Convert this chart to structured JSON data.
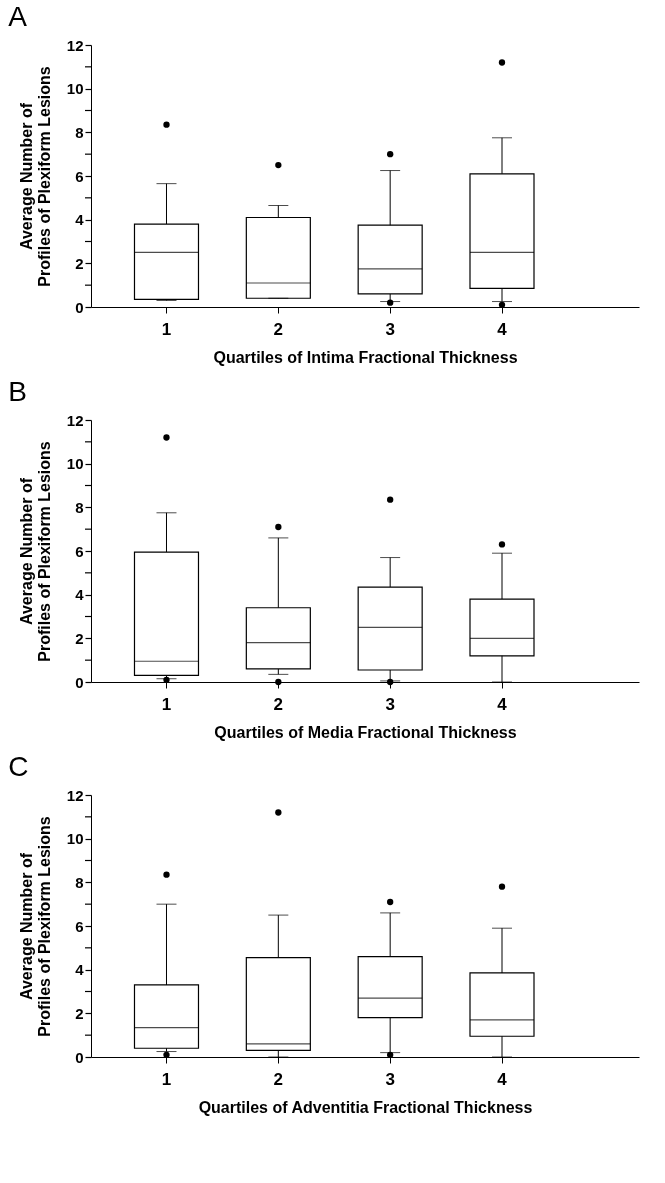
{
  "chart_data": [
    {
      "type": "box",
      "title": "A",
      "xlabel": "Quartiles of Intima Fractional Thickness",
      "ylabel": "Average Number of\nProfiles of Plexiform Lesions",
      "categories": [
        "1",
        "2",
        "3",
        "4"
      ],
      "ylim": [
        0,
        12
      ],
      "yticks": [
        0,
        {
          "value": 1,
          "label": null
        },
        2,
        {
          "value": 3,
          "label": null
        },
        4,
        {
          "value": 5,
          "label": null
        },
        6,
        {
          "value": 7,
          "label": null
        },
        8,
        {
          "value": 9,
          "label": null
        },
        10,
        {
          "value": 11,
          "label": null
        },
        12
      ],
      "grid": false,
      "legend": false,
      "boxes": [
        {
          "low": 0.3,
          "q1": 0.35,
          "median": 2.5,
          "q3": 3.8,
          "high": 5.65,
          "outliers": [
            8.35
          ]
        },
        {
          "low": 0.4,
          "q1": 0.4,
          "median": 1.1,
          "q3": 4.1,
          "high": 4.65,
          "outliers": [
            6.5
          ]
        },
        {
          "low": 0.25,
          "q1": 0.6,
          "median": 1.75,
          "q3": 3.75,
          "high": 6.25,
          "outliers": [
            7.0,
            0.2
          ]
        },
        {
          "low": 0.25,
          "q1": 0.85,
          "median": 2.5,
          "q3": 6.1,
          "high": 7.75,
          "outliers": [
            11.2,
            0.1
          ]
        }
      ]
    },
    {
      "type": "box",
      "title": "B",
      "xlabel": "Quartiles of Media Fractional Thickness",
      "ylabel": "Average Number of\nProfiles of Plexiform Lesions",
      "categories": [
        "1",
        "2",
        "3",
        "4"
      ],
      "ylim": [
        0,
        12
      ],
      "yticks": [
        0,
        {
          "value": 1,
          "label": null
        },
        2,
        {
          "value": 3,
          "label": null
        },
        4,
        {
          "value": 5,
          "label": null
        },
        6,
        {
          "value": 7,
          "label": null
        },
        8,
        {
          "value": 9,
          "label": null
        },
        10,
        {
          "value": 11,
          "label": null
        },
        12
      ],
      "grid": false,
      "legend": false,
      "boxes": [
        {
          "low": 0.15,
          "q1": 0.3,
          "median": 0.95,
          "q3": 5.95,
          "high": 7.75,
          "outliers": [
            11.2,
            0.1
          ]
        },
        {
          "low": 0.35,
          "q1": 0.6,
          "median": 1.8,
          "q3": 3.4,
          "high": 6.6,
          "outliers": [
            7.1,
            0.0
          ]
        },
        {
          "low": 0.05,
          "q1": 0.55,
          "median": 2.5,
          "q3": 4.35,
          "high": 5.7,
          "outliers": [
            8.35,
            0.0
          ]
        },
        {
          "low": 0.0,
          "q1": 1.2,
          "median": 2.0,
          "q3": 3.8,
          "high": 5.9,
          "outliers": [
            6.3
          ]
        }
      ]
    },
    {
      "type": "box",
      "title": "C",
      "xlabel": "Quartiles of Adventitia Fractional Thickness",
      "ylabel": "Average Number of\nProfiles of Plexiform Lesions",
      "categories": [
        "1",
        "2",
        "3",
        "4"
      ],
      "ylim": [
        0,
        12
      ],
      "yticks": [
        0,
        {
          "value": 1,
          "label": null
        },
        2,
        {
          "value": 3,
          "label": null
        },
        4,
        {
          "value": 5,
          "label": null
        },
        6,
        {
          "value": 7,
          "label": null
        },
        8,
        {
          "value": 9,
          "label": null
        },
        10,
        {
          "value": 11,
          "label": null
        },
        12
      ],
      "grid": false,
      "legend": false,
      "boxes": [
        {
          "low": 0.25,
          "q1": 0.4,
          "median": 1.35,
          "q3": 3.3,
          "high": 7.0,
          "outliers": [
            8.35,
            0.1
          ]
        },
        {
          "low": 0.0,
          "q1": 0.3,
          "median": 0.6,
          "q3": 4.55,
          "high": 6.5,
          "outliers": [
            11.2
          ]
        },
        {
          "low": 0.2,
          "q1": 1.8,
          "median": 2.7,
          "q3": 4.6,
          "high": 6.6,
          "outliers": [
            7.1,
            0.1
          ]
        },
        {
          "low": 0.0,
          "q1": 0.95,
          "median": 1.7,
          "q3": 3.85,
          "high": 5.9,
          "outliers": [
            7.8
          ]
        }
      ]
    }
  ]
}
